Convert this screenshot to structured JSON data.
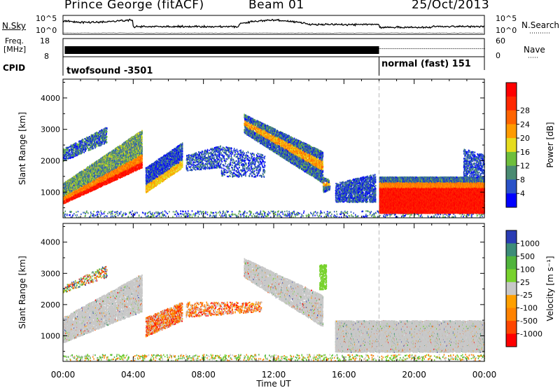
{
  "header": {
    "station": "Prince George (fitACF)",
    "beam": "Beam 01",
    "date": "25/Oct/2013"
  },
  "strip_labels": {
    "nsky": "N.Sky",
    "nsky_top": "10^5",
    "nsky_bottom": "10^0",
    "nsearch": "N.Search",
    "nsearch_top": "10^5",
    "nsearch_bottom": "10^0",
    "freq_line1": "Freq.",
    "freq_line2": "[MHz]",
    "freq_top": "18",
    "freq_bottom": "8",
    "nave": "Nave",
    "nave_top": "60",
    "nave_bottom": "0",
    "cpid": "CPID",
    "mode1": "twofsound -3501",
    "mode2": "normal (fast) 151"
  },
  "chart_data": [
    {
      "type": "heatmap",
      "panel": "power",
      "ylabel": "Slant Range [km]",
      "colorbar_label": "Power [dB]",
      "x_ticks": [
        "00:00",
        "04:00",
        "08:00",
        "12:00",
        "16:00",
        "20:00",
        "00:00"
      ],
      "y_ticks": [
        1000,
        2000,
        3000,
        4000
      ],
      "xlim_hours": [
        0,
        24
      ],
      "ylim_km": [
        180,
        4600
      ],
      "colorbar_ticks": [
        4,
        8,
        12,
        16,
        20,
        24,
        28
      ],
      "colorbar_colors": [
        "#0000ff",
        "#2a52c8",
        "#4a8b72",
        "#6ebe3c",
        "#e6dc1e",
        "#ff9b00",
        "#ff6400",
        "#ff2800",
        "#ff0000"
      ],
      "mode_change_hour": 18
    },
    {
      "type": "heatmap",
      "panel": "velocity",
      "ylabel": "Slant Range [km]",
      "colorbar_label": "Velocity [m s⁻¹]",
      "xlabel": "Time UT",
      "x_ticks": [
        "00:00",
        "04:00",
        "08:00",
        "12:00",
        "16:00",
        "20:00",
        "00:00"
      ],
      "y_ticks": [
        1000,
        2000,
        3000,
        4000
      ],
      "xlim_hours": [
        0,
        24
      ],
      "ylim_km": [
        180,
        4600
      ],
      "colorbar_ticks": [
        1000,
        500,
        100,
        25,
        -25,
        -100,
        -500,
        -1000
      ],
      "colorbar_colors": [
        "#2a3cb4",
        "#3c8c78",
        "#50b43c",
        "#78d22d",
        "#c8c8c8",
        "#ffa000",
        "#ff8200",
        "#ff4600",
        "#ff0000"
      ],
      "ground_scatter_color": "#c8c8c8"
    }
  ]
}
